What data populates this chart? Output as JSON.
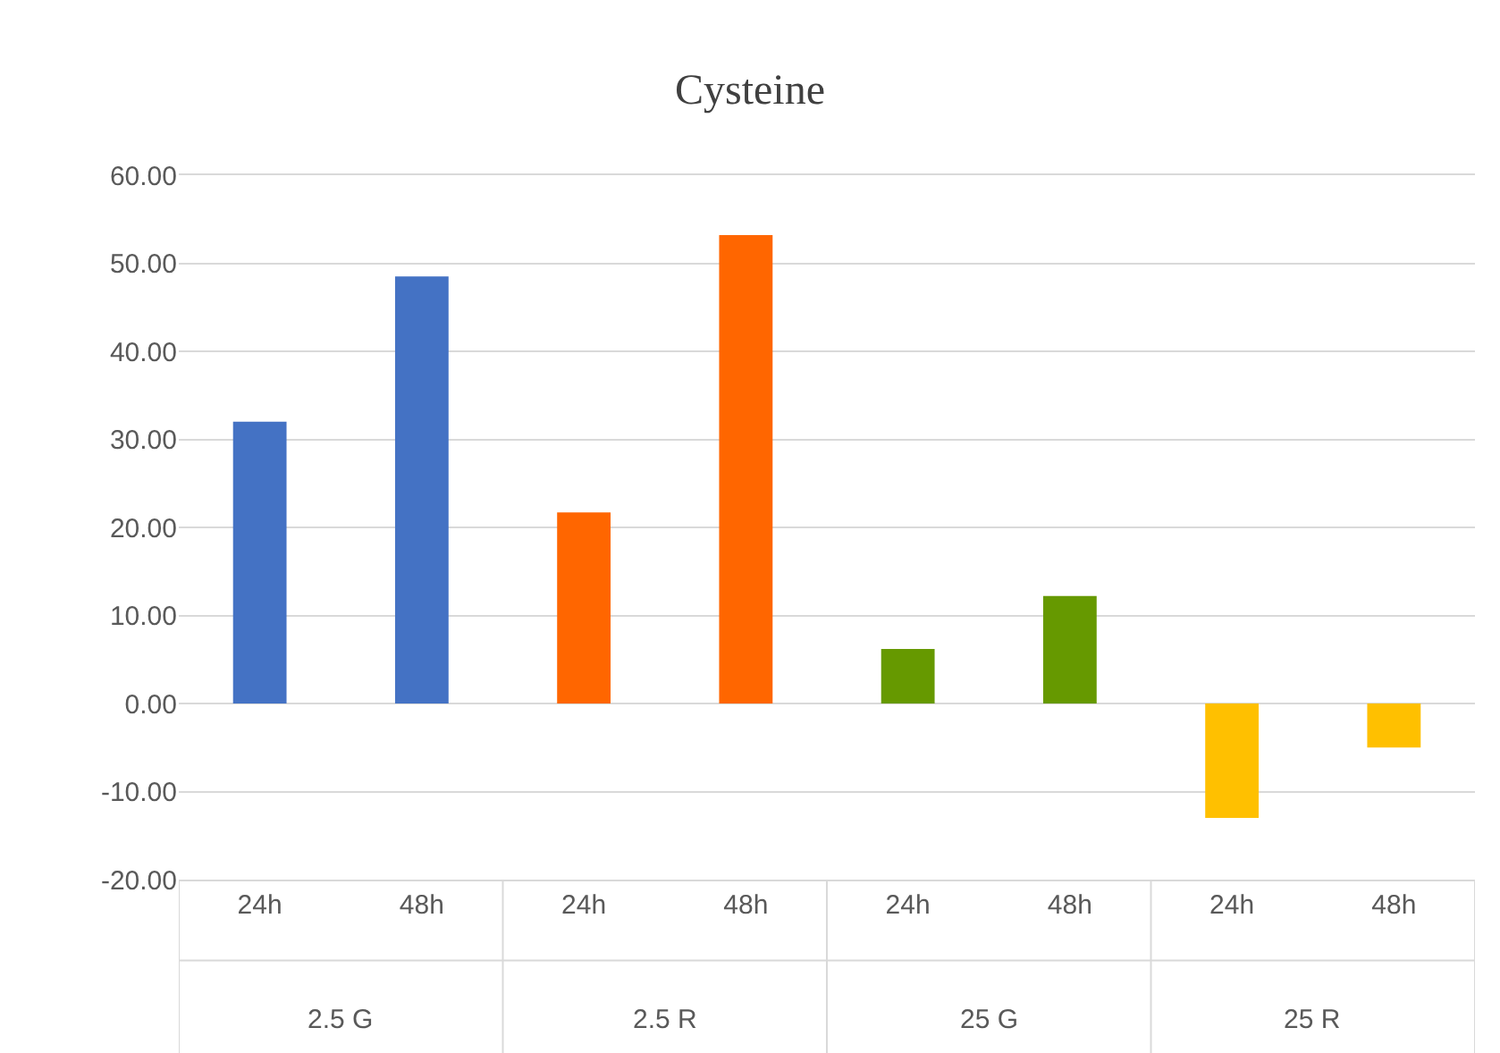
{
  "chart_data": {
    "type": "bar",
    "title": "Cysteine",
    "categories": [
      "24h",
      "48h",
      "24h",
      "48h",
      "24h",
      "48h",
      "24h",
      "48h"
    ],
    "values": [
      32.0,
      48.5,
      21.7,
      53.2,
      6.2,
      12.2,
      -13.0,
      -5.0
    ],
    "colors": [
      "#4472c4",
      "#4472c4",
      "#ff6600",
      "#ff6600",
      "#669900",
      "#669900",
      "#ffc000",
      "#ffc000"
    ],
    "annotations": [
      "2.5 G",
      "2.5 R",
      "25 G",
      "25 R"
    ],
    "ylim": [
      -20,
      60
    ],
    "yticks": [
      {
        "value": -20,
        "label": "-20.00"
      },
      {
        "value": -10,
        "label": "-10.00"
      },
      {
        "value": 0,
        "label": "0.00"
      },
      {
        "value": 10,
        "label": "10.00"
      },
      {
        "value": 20,
        "label": "20.00"
      },
      {
        "value": 30,
        "label": "30.00"
      },
      {
        "value": 40,
        "label": "40.00"
      },
      {
        "value": 50,
        "label": "50.00"
      },
      {
        "value": 60,
        "label": "60.00"
      }
    ],
    "grid": "y"
  }
}
